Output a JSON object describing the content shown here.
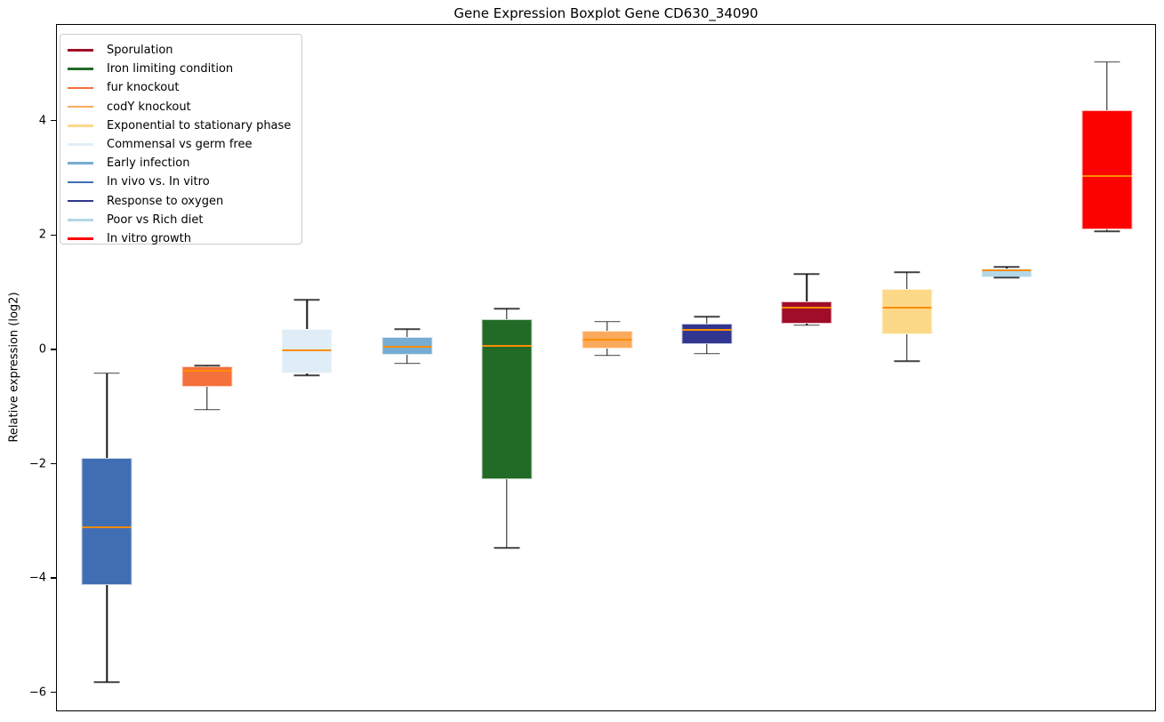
{
  "chart_data": {
    "type": "boxplot",
    "title": "Gene Expression Boxplot Gene CD630_34090",
    "ylabel": "Relative expression (log2)",
    "xlabel": "",
    "ylim": [
      -6.33,
      5.69
    ],
    "grid": false,
    "background": "#ffffff",
    "axis_color": "#000000",
    "median_color": "#ff8c00",
    "whisker_color": "#161616",
    "yticks": [
      {
        "value": 4,
        "label": "4"
      },
      {
        "value": 2,
        "label": "2"
      },
      {
        "value": 0,
        "label": "0"
      },
      {
        "value": -2,
        "label": "−2"
      },
      {
        "value": -4,
        "label": "−4"
      },
      {
        "value": -6,
        "label": "−6"
      }
    ],
    "series": [
      {
        "name": "In vivo vs. In vitro",
        "color": "#406eb3",
        "whislo": -5.8,
        "q1": -4.1,
        "med": -3.1,
        "q3": -1.88,
        "whishi": -0.4
      },
      {
        "name": "fur knockout",
        "color": "#f4713c",
        "whislo": -1.04,
        "q1": -0.64,
        "med": -0.36,
        "q3": -0.28,
        "whishi": -0.27
      },
      {
        "name": "Commensal vs germ free",
        "color": "#dfeef6",
        "whislo": -0.44,
        "q1": -0.4,
        "med": 0.0,
        "q3": 0.37,
        "whishi": 0.88
      },
      {
        "name": "Early infection",
        "color": "#76add3",
        "whislo": -0.23,
        "q1": -0.08,
        "med": 0.06,
        "q3": 0.23,
        "whishi": 0.37
      },
      {
        "name": "Iron limiting condition",
        "color": "#226b27",
        "whislo": -3.46,
        "q1": -2.26,
        "med": 0.08,
        "q3": 0.54,
        "whishi": 0.73
      },
      {
        "name": "codY knockout",
        "color": "#fbaa5c",
        "whislo": -0.09,
        "q1": 0.03,
        "med": 0.19,
        "q3": 0.34,
        "whishi": 0.5
      },
      {
        "name": "Response to oxygen",
        "color": "#30368f",
        "whislo": -0.06,
        "q1": 0.11,
        "med": 0.36,
        "q3": 0.47,
        "whishi": 0.59
      },
      {
        "name": "Sporulation",
        "color": "#a00d28",
        "whislo": 0.44,
        "q1": 0.47,
        "med": 0.74,
        "q3": 0.85,
        "whishi": 1.33
      },
      {
        "name": "Exponential to stationary phase",
        "color": "#fcd988",
        "whislo": -0.19,
        "q1": 0.28,
        "med": 0.74,
        "q3": 1.07,
        "whishi": 1.36
      },
      {
        "name": "Poor vs Rich diet",
        "color": "#b3d7e6",
        "whislo": 1.27,
        "q1": 1.28,
        "med": 1.4,
        "q3": 1.43,
        "whishi": 1.46
      },
      {
        "name": "In vitro growth",
        "color": "#fb0200",
        "whislo": 2.08,
        "q1": 2.11,
        "med": 3.04,
        "q3": 4.19,
        "whishi": 5.04
      }
    ],
    "legend": {
      "position": "upper-left",
      "entries": [
        {
          "label": "Sporulation",
          "color": "#a00d28"
        },
        {
          "label": "Iron limiting condition",
          "color": "#226b27"
        },
        {
          "label": "fur knockout",
          "color": "#f4713c"
        },
        {
          "label": "codY knockout",
          "color": "#fbaa5c"
        },
        {
          "label": "Exponential to stationary phase",
          "color": "#fcd988"
        },
        {
          "label": "Commensal vs germ free",
          "color": "#dfeef6"
        },
        {
          "label": "Early infection",
          "color": "#76add3"
        },
        {
          "label": "In vivo vs. In vitro",
          "color": "#406eb3"
        },
        {
          "label": "Response to oxygen",
          "color": "#30368f"
        },
        {
          "label": "Poor vs Rich diet",
          "color": "#b3d7e6"
        },
        {
          "label": "In vitro growth",
          "color": "#fb0200"
        }
      ]
    }
  }
}
